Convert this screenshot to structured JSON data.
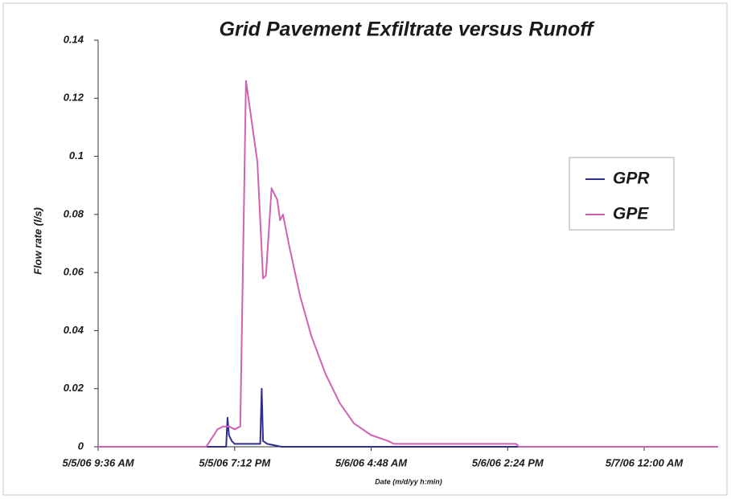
{
  "chart_data": {
    "type": "line",
    "title": "Grid Pavement Exfiltrate versus Runoff",
    "x_label": "Date (m/d/yy h:min)",
    "y_label": "Flow rate (l/s)",
    "xlim": [
      "5/5/06 9:36 AM",
      "5/7/06 5:12 AM"
    ],
    "xticks": [
      "5/5/06 9:36 AM",
      "5/5/06 7:12 PM",
      "5/6/06 4:48 AM",
      "5/6/06 2:24 PM",
      "5/7/06 12:00 AM"
    ],
    "ylim": [
      0,
      0.14
    ],
    "yticks": [
      0,
      0.02,
      0.04,
      0.06,
      0.08,
      0.1,
      0.12,
      0.14
    ],
    "legend": "right",
    "series": [
      {
        "name": "GPR",
        "color": "#2e2e8e",
        "x": [
          "5/5/06 9:36 AM",
          "5/5/06 6:36 PM",
          "5/5/06 6:42 PM",
          "5/5/06 6:48 PM",
          "5/5/06 7:00 PM",
          "5/5/06 7:12 PM",
          "5/5/06 9:00 PM",
          "5/5/06 9:06 PM",
          "5/5/06 9:12 PM",
          "5/5/06 9:30 PM",
          "5/5/06 10:30 PM",
          "5/7/06 5:12 AM"
        ],
        "values": [
          0,
          0,
          0.01,
          0.004,
          0.002,
          0.001,
          0.001,
          0.02,
          0.002,
          0.001,
          0,
          0
        ]
      },
      {
        "name": "GPE",
        "color": "#d062b4",
        "x": [
          "5/5/06 9:36 AM",
          "5/5/06 5:12 PM",
          "5/5/06 6:00 PM",
          "5/5/06 6:24 PM",
          "5/5/06 6:48 PM",
          "5/5/06 7:12 PM",
          "5/5/06 7:36 PM",
          "5/5/06 8:00 PM",
          "5/5/06 8:24 PM",
          "5/5/06 8:48 PM",
          "5/5/06 9:12 PM",
          "5/5/06 9:24 PM",
          "5/5/06 9:48 PM",
          "5/5/06 10:12 PM",
          "5/5/06 10:24 PM",
          "5/5/06 10:36 PM",
          "5/5/06 11:00 PM",
          "5/5/06 11:48 PM",
          "5/6/06 12:36 AM",
          "5/6/06 1:36 AM",
          "5/6/06 2:36 AM",
          "5/6/06 3:36 AM",
          "5/6/06 4:48 AM",
          "5/6/06 6:00 AM",
          "5/6/06 6:24 AM",
          "5/6/06 3:00 PM",
          "5/6/06 3:12 PM",
          "5/7/06 5:12 AM"
        ],
        "values": [
          0,
          0,
          0.006,
          0.007,
          0.007,
          0.006,
          0.007,
          0.126,
          0.112,
          0.098,
          0.058,
          0.059,
          0.089,
          0.085,
          0.078,
          0.08,
          0.07,
          0.052,
          0.038,
          0.025,
          0.015,
          0.008,
          0.004,
          0.002,
          0.001,
          0.001,
          0,
          0
        ]
      }
    ]
  }
}
